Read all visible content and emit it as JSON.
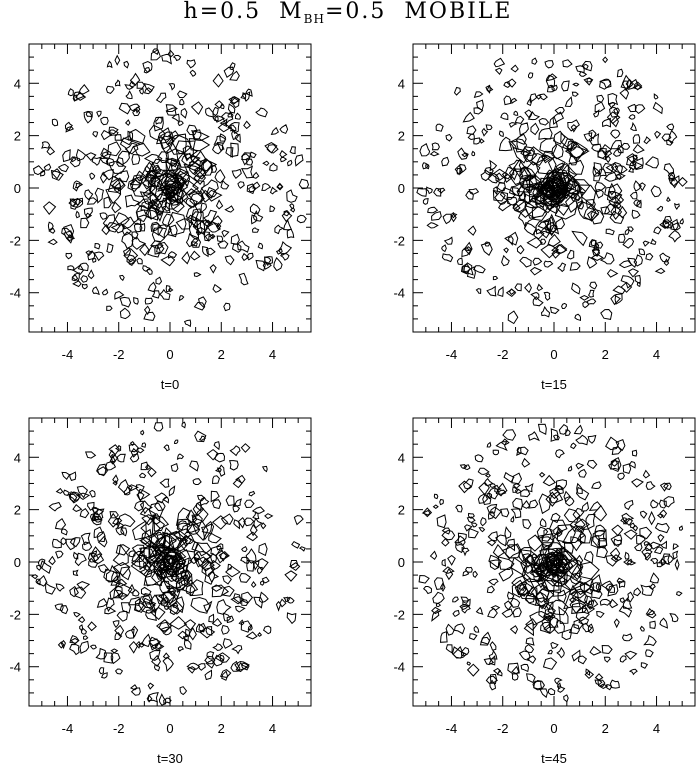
{
  "title": {
    "h_part": "h=0.5",
    "m_letter": "M",
    "m_sub": "BH",
    "m_value": "=0.5",
    "mode": "MOBILE"
  },
  "chart_data": [
    {
      "type": "contour",
      "panel_label": "t=0",
      "xlim": [
        -5.5,
        5.5
      ],
      "ylim": [
        -5.5,
        5.5
      ],
      "xticks": [
        -4,
        -2,
        0,
        2,
        4
      ],
      "yticks": [
        -4,
        -2,
        0,
        2,
        4
      ],
      "grid": false,
      "contour_color": "#000000",
      "center_concentration": 0.0,
      "field_seed": 11
    },
    {
      "type": "contour",
      "panel_label": "t=15",
      "xlim": [
        -5.5,
        5.5
      ],
      "ylim": [
        -5.5,
        5.5
      ],
      "xticks": [
        -4,
        -2,
        0,
        2,
        4
      ],
      "yticks": [
        -4,
        -2,
        0,
        2,
        4
      ],
      "grid": false,
      "contour_color": "#000000",
      "center_concentration": 0.6,
      "field_seed": 23
    },
    {
      "type": "contour",
      "panel_label": "t=30",
      "xlim": [
        -5.5,
        5.5
      ],
      "ylim": [
        -5.5,
        5.5
      ],
      "xticks": [
        -4,
        -2,
        0,
        2,
        4
      ],
      "yticks": [
        -4,
        -2,
        0,
        2,
        4
      ],
      "grid": false,
      "contour_color": "#000000",
      "center_concentration": 0.8,
      "field_seed": 37
    },
    {
      "type": "contour",
      "panel_label": "t=45",
      "xlim": [
        -5.5,
        5.5
      ],
      "ylim": [
        -5.5,
        5.5
      ],
      "xticks": [
        -4,
        -2,
        0,
        2,
        4
      ],
      "yticks": [
        -4,
        -2,
        0,
        2,
        4
      ],
      "grid": false,
      "contour_color": "#000000",
      "center_concentration": 1.0,
      "field_seed": 53
    }
  ]
}
